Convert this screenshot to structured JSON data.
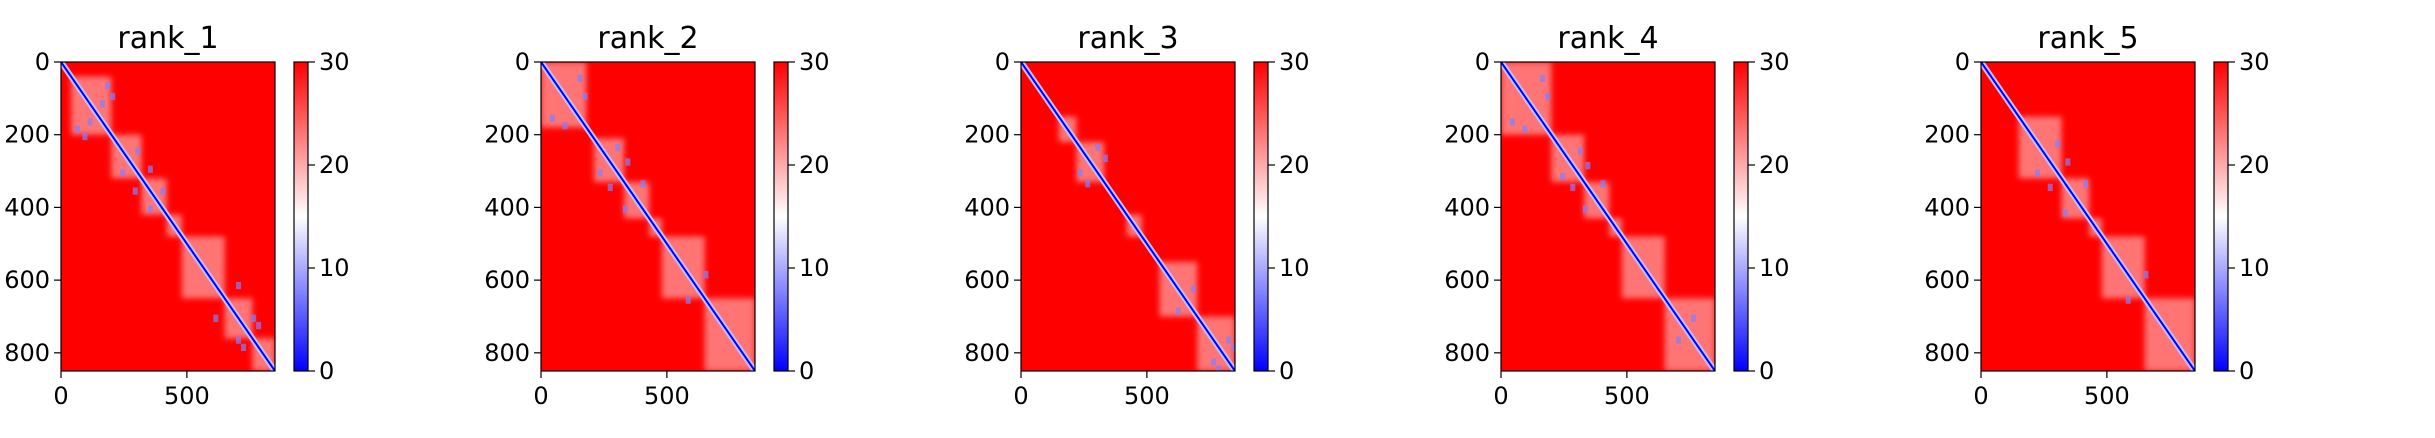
{
  "chart_data": [
    {
      "type": "heatmap",
      "title": "rank_1",
      "x_ticks": [
        "0",
        "500"
      ],
      "y_ticks": [
        "0",
        "200",
        "400",
        "600",
        "800"
      ],
      "extent": [
        0,
        850
      ],
      "colorbar": {
        "ticks": [
          "0",
          "10",
          "20",
          "30"
        ],
        "range": [
          0,
          30
        ]
      },
      "blocks": [
        [
          40,
          200
        ],
        [
          200,
          320
        ],
        [
          320,
          420
        ],
        [
          420,
          480
        ],
        [
          480,
          650
        ],
        [
          650,
          760
        ],
        [
          760,
          850
        ]
      ],
      "contacts": [
        [
          60,
          180
        ],
        [
          90,
          200
        ],
        [
          110,
          160
        ],
        [
          240,
          300
        ],
        [
          290,
          350
        ],
        [
          350,
          400
        ],
        [
          610,
          700
        ],
        [
          700,
          760
        ],
        [
          720,
          780
        ]
      ]
    },
    {
      "type": "heatmap",
      "title": "rank_2",
      "x_ticks": [
        "0",
        "500"
      ],
      "y_ticks": [
        "0",
        "200",
        "400",
        "600",
        "800"
      ],
      "extent": [
        0,
        850
      ],
      "colorbar": {
        "ticks": [
          "0",
          "10",
          "20",
          "30"
        ],
        "range": [
          0,
          30
        ]
      },
      "blocks": [
        [
          0,
          180
        ],
        [
          210,
          330
        ],
        [
          330,
          430
        ],
        [
          430,
          480
        ],
        [
          480,
          650
        ],
        [
          650,
          850
        ]
      ],
      "contacts": [
        [
          40,
          150
        ],
        [
          90,
          170
        ],
        [
          230,
          300
        ],
        [
          270,
          340
        ],
        [
          330,
          400
        ],
        [
          580,
          650
        ]
      ]
    },
    {
      "type": "heatmap",
      "title": "rank_3",
      "x_ticks": [
        "0",
        "500"
      ],
      "y_ticks": [
        "0",
        "200",
        "400",
        "600",
        "800"
      ],
      "extent": [
        0,
        850
      ],
      "colorbar": {
        "ticks": [
          "0",
          "10",
          "20",
          "30"
        ],
        "range": [
          0,
          30
        ]
      },
      "blocks": [
        [
          150,
          220
        ],
        [
          220,
          330
        ],
        [
          420,
          480
        ],
        [
          550,
          700
        ],
        [
          700,
          850
        ]
      ],
      "contacts": [
        [
          230,
          300
        ],
        [
          260,
          330
        ],
        [
          620,
          680
        ],
        [
          760,
          820
        ],
        [
          780,
          840
        ]
      ]
    },
    {
      "type": "heatmap",
      "title": "rank_4",
      "x_ticks": [
        "0",
        "500"
      ],
      "y_ticks": [
        "0",
        "200",
        "400",
        "600",
        "800"
      ],
      "extent": [
        0,
        850
      ],
      "colorbar": {
        "ticks": [
          "0",
          "10",
          "20",
          "30"
        ],
        "range": [
          0,
          30
        ]
      },
      "blocks": [
        [
          0,
          200
        ],
        [
          200,
          330
        ],
        [
          330,
          430
        ],
        [
          430,
          480
        ],
        [
          480,
          650
        ],
        [
          650,
          850
        ]
      ],
      "contacts": [
        [
          40,
          160
        ],
        [
          90,
          180
        ],
        [
          240,
          310
        ],
        [
          280,
          340
        ],
        [
          330,
          400
        ],
        [
          700,
          760
        ]
      ]
    },
    {
      "type": "heatmap",
      "title": "rank_5",
      "x_ticks": [
        "0",
        "500"
      ],
      "y_ticks": [
        "0",
        "200",
        "400",
        "600",
        "800"
      ],
      "extent": [
        0,
        850
      ],
      "colorbar": {
        "ticks": [
          "0",
          "10",
          "20",
          "30"
        ],
        "range": [
          0,
          30
        ]
      },
      "blocks": [
        [
          150,
          320
        ],
        [
          320,
          430
        ],
        [
          430,
          480
        ],
        [
          480,
          650
        ],
        [
          650,
          850
        ]
      ],
      "contacts": [
        [
          220,
          300
        ],
        [
          270,
          340
        ],
        [
          330,
          410
        ],
        [
          580,
          650
        ]
      ]
    }
  ],
  "colors": {
    "low": "#0000ff",
    "mid": "#ffffff",
    "high": "#ff0000"
  }
}
